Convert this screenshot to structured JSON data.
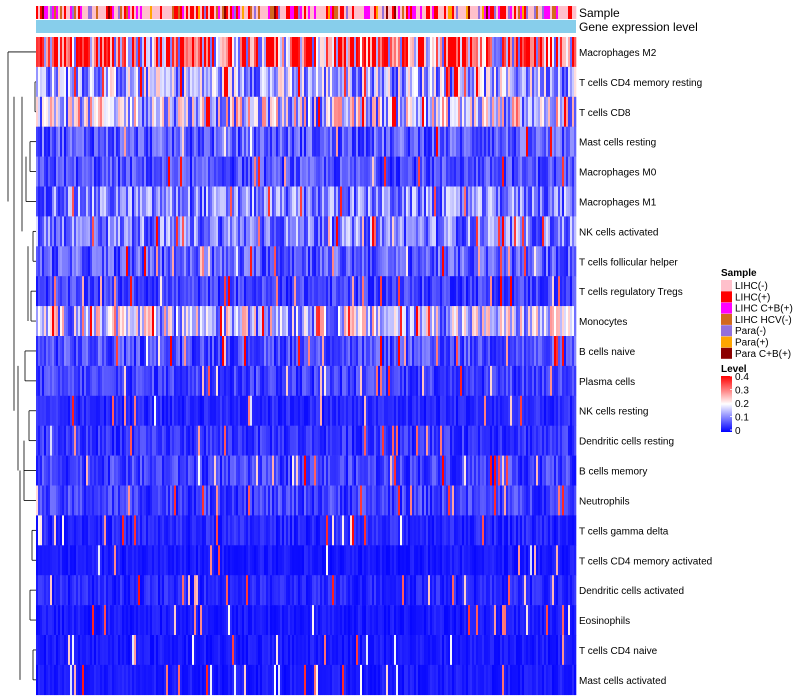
{
  "chart_data": {
    "type": "heatmap",
    "annotation_tracks": [
      "Sample",
      "Gene expression level"
    ],
    "rows": [
      "Macrophages M2",
      "T cells CD4 memory resting",
      "T cells CD8",
      "Mast cells resting",
      "Macrophages M0",
      "Macrophages M1",
      "NK cells activated",
      "T cells follicular helper",
      "T cells regulatory  Tregs",
      "Monocytes",
      "B cells naive",
      "Plasma cells",
      "NK cells resting",
      "Dendritic cells resting",
      "B cells memory",
      "Neutrophils",
      "T cells gamma delta",
      "T cells CD4 memory activated",
      "Dendritic cells activated",
      "Eosinophils",
      "T cells CD4 naive",
      "Mast cells activated"
    ],
    "row_mean_levels": [
      0.3,
      0.14,
      0.17,
      0.07,
      0.06,
      0.1,
      0.1,
      0.07,
      0.05,
      0.16,
      0.06,
      0.05,
      0.03,
      0.04,
      0.05,
      0.05,
      0.03,
      0.02,
      0.03,
      0.02,
      0.02,
      0.02
    ],
    "sample_legend": {
      "title": "Sample",
      "items": [
        {
          "label": "LIHC(-)",
          "color": "#ffc0cb"
        },
        {
          "label": "LIHC(+)",
          "color": "#ff0000"
        },
        {
          "label": "LIHC C+B(+)",
          "color": "#ff00ff"
        },
        {
          "label": "LIHC HCV(-)",
          "color": "#d2691e"
        },
        {
          "label": "Para(-)",
          "color": "#9370db"
        },
        {
          "label": "Para(+)",
          "color": "#ffa500"
        },
        {
          "label": "Para C+B(+)",
          "color": "#8b0000"
        }
      ]
    },
    "level_legend": {
      "title": "Level",
      "ticks": [
        "0.4",
        "0.3",
        "0.2",
        "0.1",
        "0"
      ],
      "range": [
        0,
        0.4
      ],
      "colors": {
        "low": "#0000ff",
        "mid": "#ffffff",
        "high": "#ff0000"
      }
    },
    "gene_expression_color": "#87ceeb",
    "legend_position": "right"
  }
}
